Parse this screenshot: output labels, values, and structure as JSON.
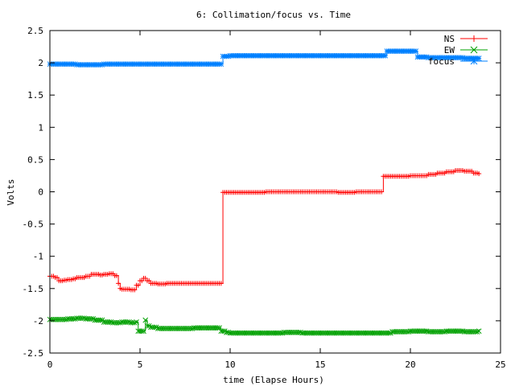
{
  "chart_data": {
    "type": "line",
    "title": "6: Collimation/focus vs. Time",
    "xlabel": "time (Elapse Hours)",
    "ylabel": "Volts",
    "xlim": [
      0,
      25
    ],
    "ylim": [
      -2.5,
      2.5
    ],
    "xticks": [
      0,
      5,
      10,
      15,
      20,
      25
    ],
    "xtick_labels": [
      "0",
      "5",
      "10",
      "15",
      "20",
      "25"
    ],
    "yticks": [
      -2.5,
      -2,
      -1.5,
      -1,
      -0.5,
      0,
      0.5,
      1,
      1.5,
      2,
      2.5
    ],
    "ytick_labels": [
      "-2.5",
      "-2",
      "-1.5",
      "-1",
      "-0.5",
      "0",
      "0.5",
      "1",
      "1.5",
      "2",
      "2.5"
    ],
    "grid": false,
    "legend_position": "top-right",
    "series": [
      {
        "name": "NS",
        "color": "#ff0000",
        "marker": "plus",
        "x": [
          0.0,
          0.3,
          0.5,
          0.8,
          1.0,
          1.3,
          1.5,
          1.8,
          2.0,
          2.3,
          2.5,
          2.8,
          3.0,
          3.3,
          3.6,
          3.8,
          3.9,
          4.0,
          4.2,
          4.5,
          4.8,
          5.0,
          5.2,
          5.4,
          5.6,
          6.0,
          6.5,
          7.0,
          7.5,
          8.0,
          8.5,
          9.0,
          9.4,
          9.5,
          9.6,
          10.0,
          11.0,
          12.0,
          13.0,
          14.0,
          15.0,
          16.0,
          17.0,
          18.0,
          18.4,
          18.5,
          18.6,
          19.0,
          20.0,
          20.5,
          21.0,
          21.5,
          22.0,
          22.5,
          23.0,
          23.5,
          23.8
        ],
        "y": [
          -1.31,
          -1.33,
          -1.38,
          -1.37,
          -1.36,
          -1.35,
          -1.33,
          -1.33,
          -1.31,
          -1.28,
          -1.28,
          -1.29,
          -1.28,
          -1.27,
          -1.3,
          -1.42,
          -1.5,
          -1.51,
          -1.51,
          -1.52,
          -1.45,
          -1.38,
          -1.34,
          -1.38,
          -1.42,
          -1.43,
          -1.42,
          -1.42,
          -1.42,
          -1.42,
          -1.42,
          -1.42,
          -1.42,
          -1.42,
          -0.01,
          -0.01,
          -0.01,
          0.0,
          0.0,
          0.0,
          0.0,
          -0.01,
          0.0,
          0.0,
          0.0,
          0.24,
          0.24,
          0.24,
          0.25,
          0.25,
          0.27,
          0.29,
          0.31,
          0.33,
          0.32,
          0.29,
          0.28
        ]
      },
      {
        "name": "EW",
        "color": "#00a000",
        "marker": "cross",
        "x": [
          0.0,
          0.5,
          1.0,
          1.5,
          2.0,
          2.5,
          3.0,
          3.5,
          4.0,
          4.5,
          4.8,
          4.9,
          5.0,
          5.2,
          5.3,
          5.4,
          5.6,
          6.0,
          7.0,
          8.0,
          9.0,
          9.4,
          9.5,
          9.8,
          10.0,
          11.0,
          12.0,
          13.0,
          14.0,
          15.0,
          16.0,
          17.0,
          18.0,
          19.0,
          20.0,
          21.0,
          22.0,
          23.0,
          23.8
        ],
        "y": [
          -1.98,
          -1.98,
          -1.97,
          -1.96,
          -1.97,
          -1.99,
          -2.02,
          -2.03,
          -2.02,
          -2.03,
          -2.02,
          -2.16,
          -2.16,
          -2.16,
          -1.99,
          -2.08,
          -2.1,
          -2.12,
          -2.12,
          -2.11,
          -2.11,
          -2.11,
          -2.16,
          -2.18,
          -2.19,
          -2.19,
          -2.19,
          -2.18,
          -2.19,
          -2.19,
          -2.19,
          -2.19,
          -2.19,
          -2.17,
          -2.16,
          -2.17,
          -2.16,
          -2.17,
          -2.16
        ]
      },
      {
        "name": "focus",
        "color": "#0080ff",
        "marker": "star",
        "x": [
          0.0,
          0.5,
          1.0,
          1.5,
          2.0,
          2.5,
          3.0,
          4.0,
          5.0,
          6.0,
          7.0,
          8.0,
          9.0,
          9.4,
          9.5,
          9.6,
          10.0,
          11.0,
          12.0,
          13.0,
          14.0,
          15.0,
          16.0,
          17.0,
          18.0,
          18.6,
          18.7,
          19.0,
          19.5,
          20.0,
          20.3,
          20.4,
          21.0,
          22.0,
          23.0,
          23.8
        ],
        "y": [
          1.98,
          1.98,
          1.98,
          1.97,
          1.97,
          1.97,
          1.98,
          1.98,
          1.98,
          1.98,
          1.98,
          1.98,
          1.98,
          1.98,
          1.98,
          2.1,
          2.11,
          2.11,
          2.11,
          2.11,
          2.11,
          2.11,
          2.11,
          2.11,
          2.11,
          2.11,
          2.18,
          2.18,
          2.18,
          2.18,
          2.18,
          2.09,
          2.08,
          2.08,
          2.07,
          2.07
        ]
      }
    ]
  }
}
